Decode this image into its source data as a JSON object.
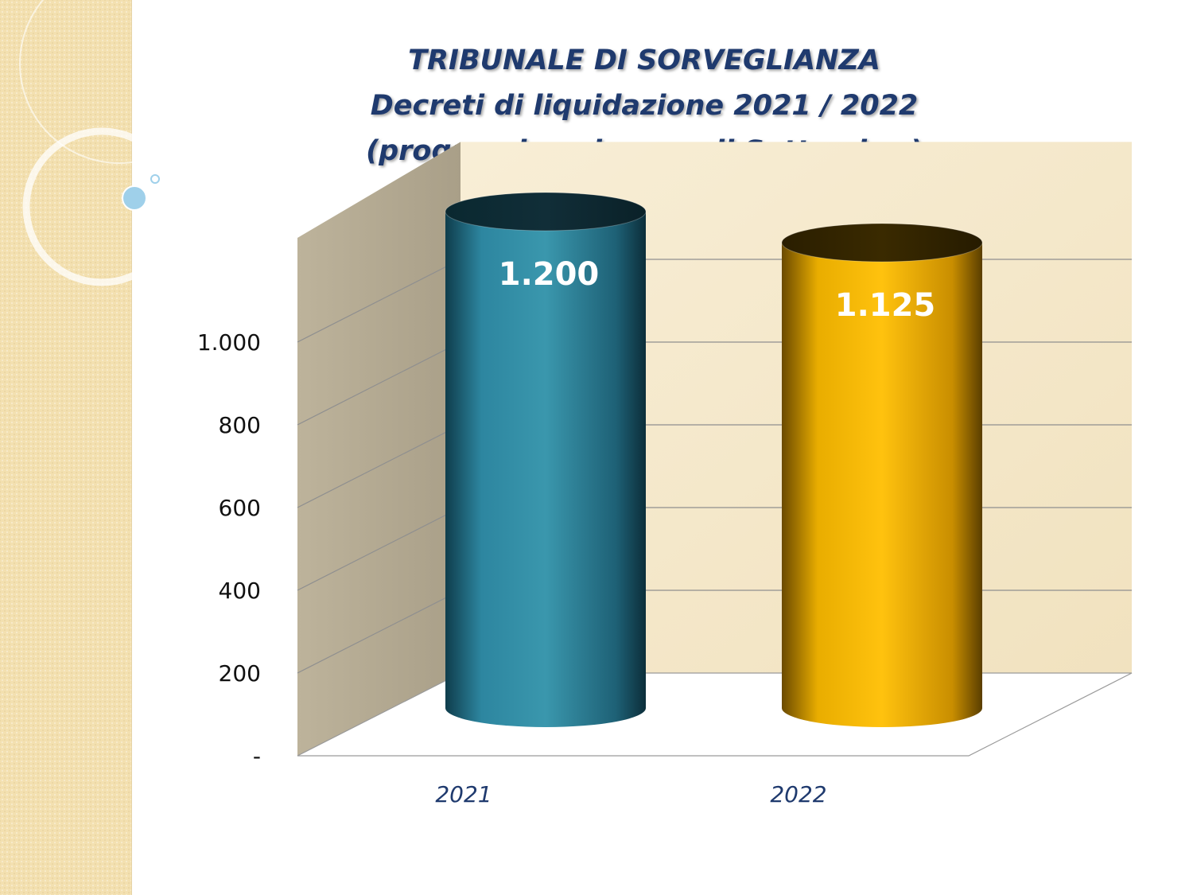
{
  "title": {
    "line1": "TRIBUNALE DI SORVEGLIANZA",
    "line2": "Decreti di liquidazione 2021 / 2022",
    "line3": "(progressivo al mese di Settembre)"
  },
  "chart_data": {
    "type": "bar",
    "categories": [
      "2021",
      "2022"
    ],
    "values": [
      1200,
      1125
    ],
    "value_labels": [
      "1.200",
      "1.125"
    ],
    "ylim": [
      0,
      1200
    ],
    "yticks": [
      0,
      200,
      400,
      600,
      800,
      1000
    ],
    "ytick_labels": [
      "-",
      "200",
      "400",
      "600",
      "800",
      "1.000"
    ],
    "grid": true,
    "colors": [
      "#2e88a0",
      "#f2b400"
    ]
  }
}
